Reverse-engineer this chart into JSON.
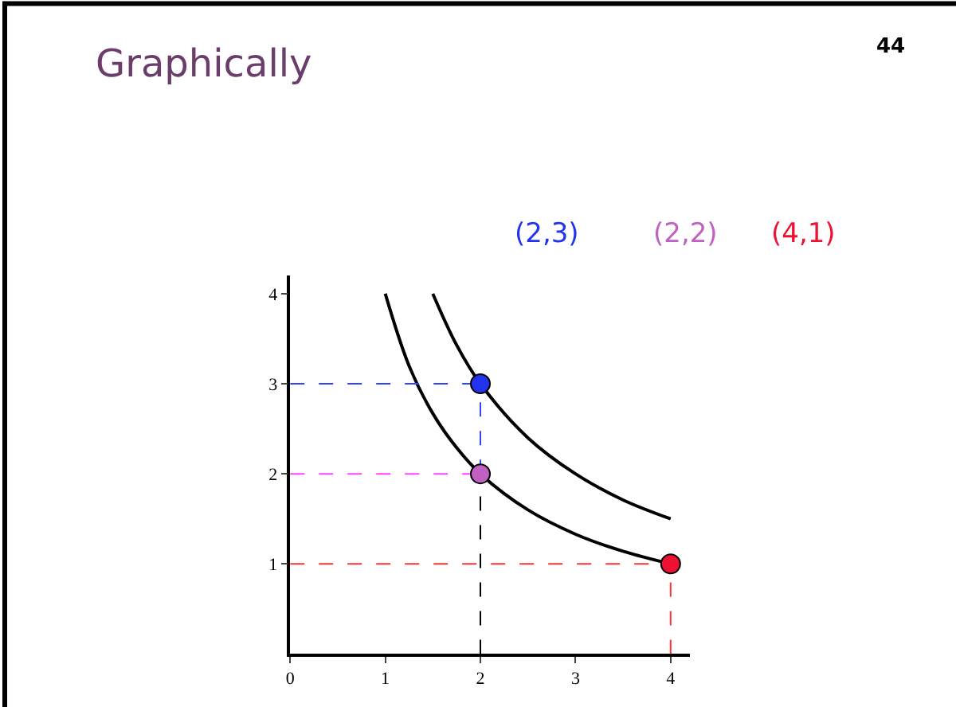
{
  "chart_data": {
    "type": "line",
    "title": "Graphically",
    "annotations": [
      "44"
    ],
    "xlim": [
      0,
      4.2
    ],
    "ylim": [
      0,
      4.2
    ],
    "xticks": [
      0,
      1,
      2,
      3,
      4
    ],
    "yticks": [
      1,
      2,
      3,
      4
    ],
    "legend": "top",
    "series": [
      {
        "color": "#000000",
        "line_style": "solid",
        "marker": "none",
        "x": [
          1,
          1.25,
          1.5,
          1.75,
          2,
          2.5,
          3,
          3.5,
          4
        ],
        "values": [
          4,
          3.2,
          2.67,
          2.29,
          2,
          1.6,
          1.33,
          1.14,
          1
        ]
      },
      {
        "color": "#000000",
        "line_style": "solid",
        "marker": "none",
        "x": [
          1.5,
          1.75,
          2,
          2.5,
          3,
          3.5,
          4
        ],
        "values": [
          4,
          3.43,
          3,
          2.4,
          2,
          1.71,
          1.5
        ]
      },
      {
        "type": "line",
        "color": "#3344ff",
        "line_style": "dashed",
        "marker": "none",
        "x": [
          0,
          2
        ],
        "values": [
          3,
          3
        ]
      },
      {
        "type": "line",
        "color": "#3344ff",
        "line_style": "dashed",
        "marker": "none",
        "x": [
          2,
          2
        ],
        "values": [
          2,
          3
        ]
      },
      {
        "type": "line",
        "color": "#ff44ff",
        "line_style": "dashed",
        "marker": "none",
        "x": [
          0,
          2
        ],
        "values": [
          2,
          2
        ]
      },
      {
        "type": "line",
        "color": "#000000",
        "line_style": "dashed",
        "marker": "none",
        "x": [
          2,
          2
        ],
        "values": [
          0,
          2
        ]
      },
      {
        "type": "line",
        "color": "#ff3333",
        "line_style": "dashed",
        "marker": "none",
        "x": [
          0,
          4
        ],
        "values": [
          1,
          1
        ]
      },
      {
        "type": "line",
        "color": "#ff3333",
        "line_style": "dashed",
        "marker": "none",
        "x": [
          4,
          4
        ],
        "values": [
          0,
          1
        ]
      },
      {
        "type": "scatter",
        "name": "(2,3)",
        "color": "#2233ee",
        "marker": "circle",
        "x": [
          2
        ],
        "values": [
          3
        ]
      },
      {
        "type": "scatter",
        "name": "(2,2)",
        "color": "#c060c0",
        "marker": "circle",
        "x": [
          2
        ],
        "values": [
          2
        ]
      },
      {
        "type": "scatter",
        "name": "(4,1)",
        "color": "#ee1133",
        "marker": "circle",
        "x": [
          4
        ],
        "values": [
          1
        ]
      }
    ]
  }
}
